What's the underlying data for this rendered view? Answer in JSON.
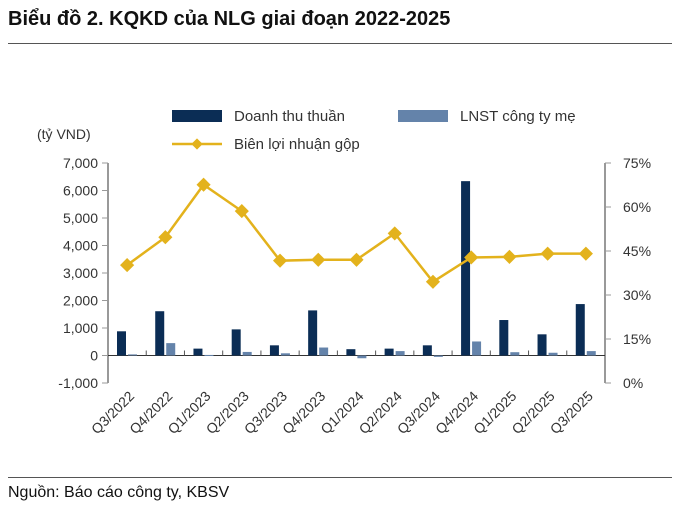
{
  "title": "Biểu đồ 2. KQKD của NLG giai đoạn 2022-2025",
  "source": "Nguồn: Báo cáo công ty, KBSV",
  "chart_data": {
    "type": "bar+line",
    "unit_label": "(tỷ VND)",
    "categories": [
      "Q3/2022",
      "Q4/2022",
      "Q1/2023",
      "Q2/2023",
      "Q3/2023",
      "Q4/2023",
      "Q1/2024",
      "Q2/2024",
      "Q3/2024",
      "Q4/2024",
      "Q1/2025",
      "Q2/2025",
      "Q3/2025"
    ],
    "series": [
      {
        "name": "Doanh thu thuần",
        "type": "bar",
        "axis": "left",
        "color": "#0b2d55",
        "values": [
          880,
          1610,
          250,
          950,
          370,
          1640,
          230,
          250,
          370,
          6340,
          1290,
          770,
          1870
        ]
      },
      {
        "name": "LNST công ty mẹ",
        "type": "bar",
        "axis": "left",
        "color": "#6483aa",
        "values": [
          40,
          450,
          20,
          130,
          80,
          290,
          -100,
          160,
          -50,
          510,
          120,
          100,
          160
        ]
      },
      {
        "name": "Biên lợi nhuận gộp",
        "type": "line",
        "axis": "right",
        "color": "#e3b21c",
        "values": [
          40.2,
          49.7,
          67.6,
          58.6,
          41.7,
          42.0,
          42.0,
          51.0,
          34.5,
          42.8,
          43.0,
          44.1,
          44.1
        ]
      }
    ],
    "left_axis": {
      "min": -1000,
      "max": 7000,
      "ticks": [
        "-1,000",
        "0",
        "1,000",
        "2,000",
        "3,000",
        "4,000",
        "5,000",
        "6,000",
        "7,000"
      ]
    },
    "right_axis": {
      "min": 0,
      "max": 75,
      "ticks": [
        "0%",
        "15%",
        "30%",
        "45%",
        "60%",
        "75%"
      ]
    },
    "legend_placement": "top",
    "grid": false
  }
}
